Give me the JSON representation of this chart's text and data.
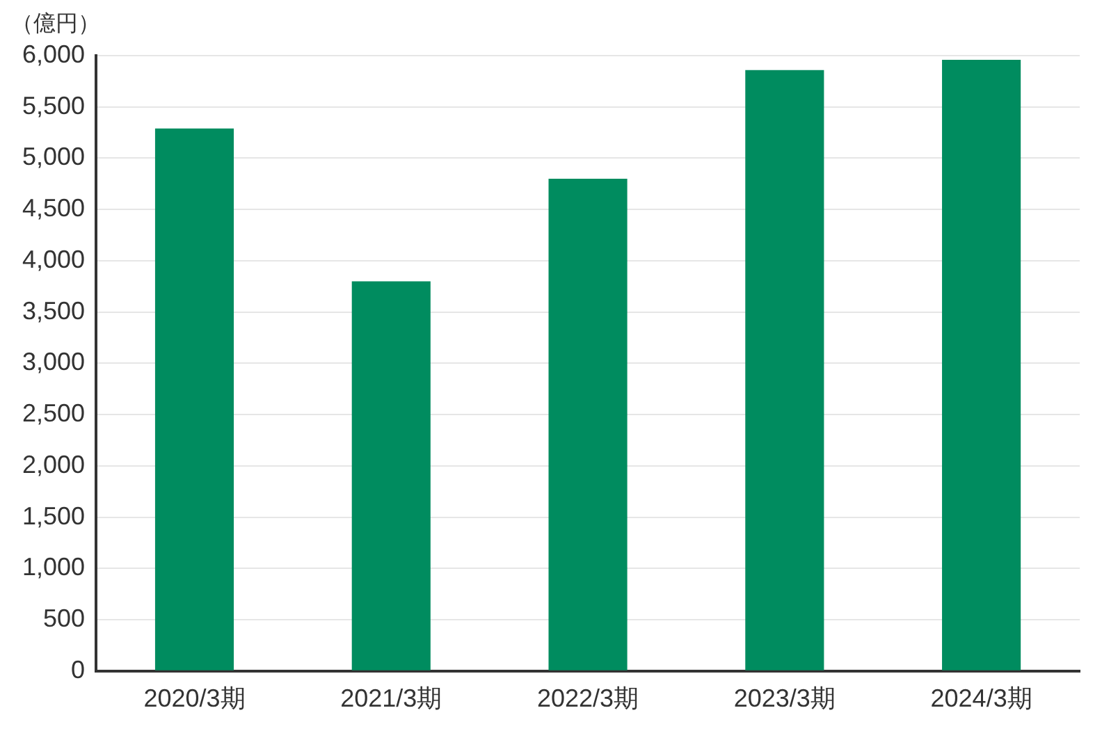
{
  "chart_data": {
    "type": "bar",
    "ylabel": "（億円）",
    "categories": [
      "2020/3期",
      "2021/3期",
      "2022/3期",
      "2023/3期",
      "2024/3期"
    ],
    "values": [
      5290,
      3800,
      4800,
      5860,
      5960
    ],
    "color": "#008c5f",
    "ylim": [
      0,
      6000
    ],
    "yticks": [
      {
        "value": 0,
        "label": "0"
      },
      {
        "value": 500,
        "label": "500"
      },
      {
        "value": 1000,
        "label": "1,000"
      },
      {
        "value": 1500,
        "label": "1,500"
      },
      {
        "value": 2000,
        "label": "2,000"
      },
      {
        "value": 2500,
        "label": "2,500"
      },
      {
        "value": 3000,
        "label": "3,000"
      },
      {
        "value": 3500,
        "label": "3,500"
      },
      {
        "value": 4000,
        "label": "4,000"
      },
      {
        "value": 4500,
        "label": "4,500"
      },
      {
        "value": 5000,
        "label": "5,000"
      },
      {
        "value": 5500,
        "label": "5,500"
      },
      {
        "value": 6000,
        "label": "6,000"
      }
    ],
    "grid": "y"
  }
}
